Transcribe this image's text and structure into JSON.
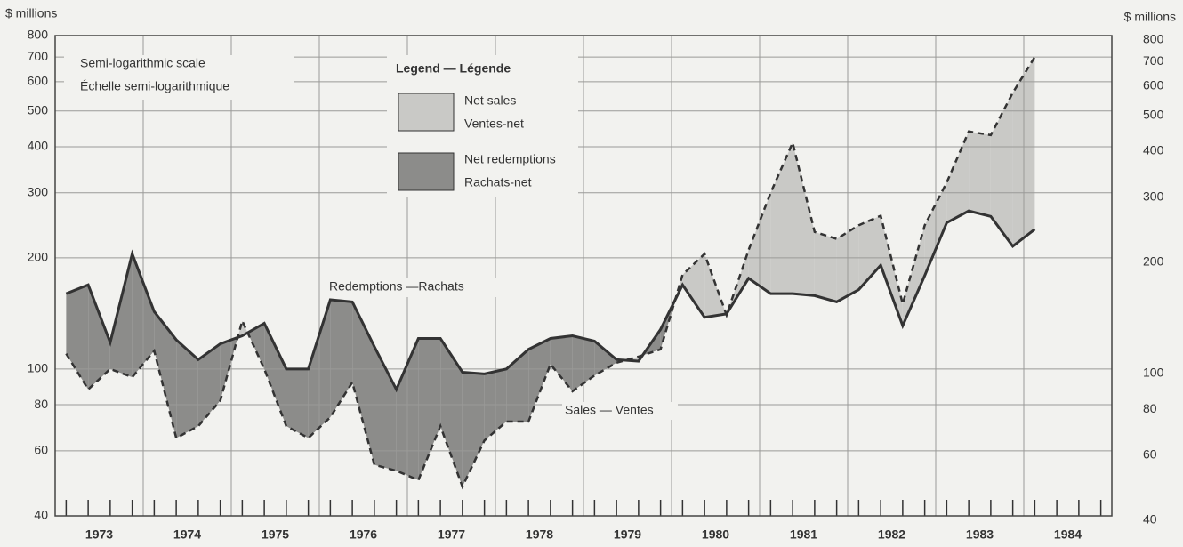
{
  "chart_data": {
    "type": "line",
    "y_axis_label": "$ millions",
    "y2_axis_label": "$ millions",
    "scale_note": [
      "Semi-logarithmic scale",
      "Échelle semi-logarithmique"
    ],
    "legend_title": "Legend — Légende",
    "legend": [
      {
        "labels": [
          "Net sales",
          "Ventes-net"
        ],
        "color": "#c9c9c6"
      },
      {
        "labels": [
          "Net redemptions",
          "Rachats-net"
        ],
        "color": "#8c8c8a"
      }
    ],
    "log_scale": true,
    "grid": true,
    "categories": [
      "1973",
      null,
      null,
      null,
      "1974",
      null,
      null,
      null,
      "1975",
      null,
      null,
      null,
      "1976",
      null,
      null,
      null,
      "1977",
      null,
      null,
      null,
      "1978",
      null,
      null,
      null,
      "1979",
      null,
      null,
      null,
      "1980",
      null,
      null,
      null,
      "1981",
      null,
      null,
      null,
      "1982",
      null,
      null,
      null,
      "1983",
      null,
      null,
      null,
      "1984",
      null,
      null,
      null
    ],
    "series": [
      {
        "name": "Redemptions —Rachats",
        "color": "#333333",
        "dashed": false,
        "values": [
          160,
          169,
          118,
          205,
          143,
          120,
          106,
          117,
          123,
          133,
          100,
          100,
          154,
          152,
          115,
          88,
          121,
          121,
          98,
          97,
          100,
          113,
          121,
          123,
          119,
          106,
          105,
          128,
          169,
          138,
          141,
          176,
          160,
          160,
          158,
          152,
          164,
          191,
          131,
          179,
          249,
          268,
          259,
          215,
          239,
          null,
          null,
          null
        ]
      },
      {
        "name": "Sales — Ventes",
        "color": "#333333",
        "dashed": true,
        "values": [
          110,
          88,
          100,
          95,
          112,
          65,
          70,
          82,
          135,
          100,
          70,
          65,
          74,
          92,
          55,
          53,
          50,
          70,
          48,
          64,
          72,
          72,
          103,
          87,
          96,
          104,
          108,
          113,
          180,
          205,
          140,
          210,
          300,
          410,
          235,
          225,
          245,
          260,
          150,
          245,
          320,
          440,
          430,
          560,
          700,
          null,
          null,
          null
        ]
      }
    ],
    "ylim": [
      40,
      800
    ],
    "yticks": [
      40,
      60,
      80,
      100,
      200,
      300,
      400,
      500,
      600,
      700,
      800
    ],
    "y2lim": [
      40,
      800
    ],
    "y2ticks": [
      40,
      60,
      80,
      100,
      200,
      300,
      400,
      500,
      600,
      700,
      800
    ]
  }
}
